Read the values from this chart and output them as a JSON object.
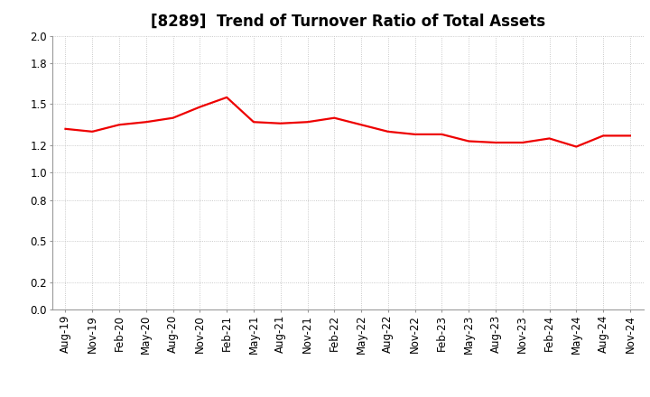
{
  "title": "[8289]  Trend of Turnover Ratio of Total Assets",
  "x_labels": [
    "Aug-19",
    "Nov-19",
    "Feb-20",
    "May-20",
    "Aug-20",
    "Nov-20",
    "Feb-21",
    "May-21",
    "Aug-21",
    "Nov-21",
    "Feb-22",
    "May-22",
    "Aug-22",
    "Nov-22",
    "Feb-23",
    "May-23",
    "Aug-23",
    "Nov-23",
    "Feb-24",
    "May-24",
    "Aug-24",
    "Nov-24"
  ],
  "values": [
    1.32,
    1.3,
    1.35,
    1.37,
    1.4,
    1.48,
    1.55,
    1.37,
    1.36,
    1.37,
    1.4,
    1.35,
    1.3,
    1.28,
    1.28,
    1.23,
    1.22,
    1.22,
    1.25,
    1.19,
    1.27,
    1.27
  ],
  "line_color": "#EE0000",
  "line_width": 1.6,
  "ylim": [
    0.0,
    2.0
  ],
  "yticks": [
    0.0,
    0.2,
    0.5,
    0.8,
    1.0,
    1.2,
    1.5,
    1.8,
    2.0
  ],
  "background_color": "#FFFFFF",
  "plot_background_color": "#FFFFFF",
  "grid_color": "#BBBBBB",
  "title_fontsize": 12,
  "tick_fontsize": 8.5
}
